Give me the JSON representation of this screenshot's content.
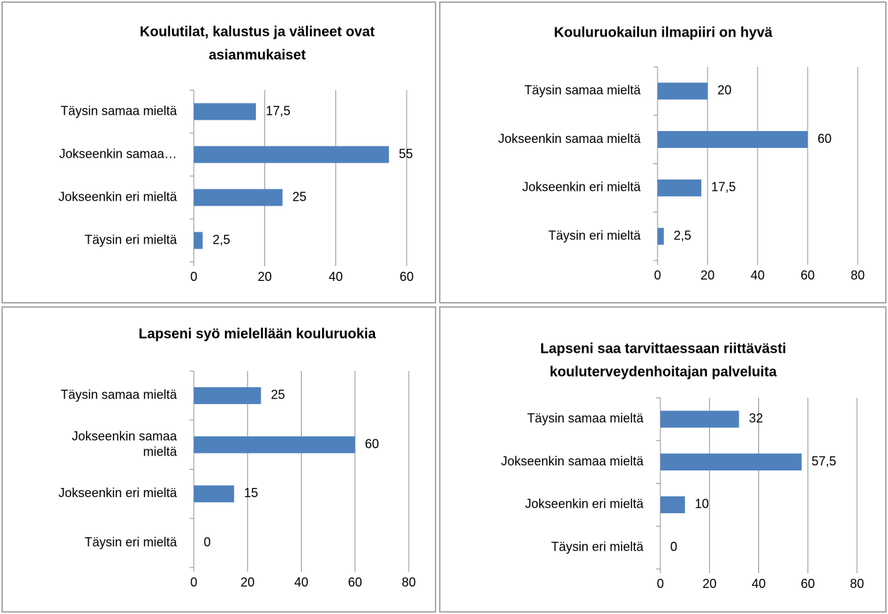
{
  "chart_data": [
    {
      "type": "bar",
      "orientation": "horizontal",
      "title": "Koulutilat, kalustus ja välineet ovat asianmukaiset",
      "categories": [
        "Täysin samaa mieltä",
        "Jokseenkin samaa…",
        "Jokseenkin eri mieltä",
        "Täysin eri mieltä"
      ],
      "values": [
        17.5,
        55,
        25,
        2.5
      ],
      "value_labels": [
        "17,5",
        "55",
        "25",
        "2,5"
      ],
      "color": "#4f81bd",
      "xlim": [
        0,
        60
      ],
      "xticks": [
        0,
        20,
        40,
        60
      ],
      "grid": true
    },
    {
      "type": "bar",
      "orientation": "horizontal",
      "title": "Kouluruokailun ilmapiiri on hyvä",
      "categories": [
        "Täysin samaa mieltä",
        "Jokseenkin samaa mieltä",
        "Jokseenkin eri mieltä",
        "Täysin eri mieltä"
      ],
      "values": [
        20,
        60,
        17.5,
        2.5
      ],
      "value_labels": [
        "20",
        "60",
        "17,5",
        "2,5"
      ],
      "color": "#4f81bd",
      "xlim": [
        0,
        80
      ],
      "xticks": [
        0,
        20,
        40,
        60,
        80
      ],
      "grid": true
    },
    {
      "type": "bar",
      "orientation": "horizontal",
      "title": "Lapseni syö mielellään kouluruokia",
      "categories": [
        "Täysin samaa mieltä",
        "Jokseenkin samaa mieltä",
        "Jokseenkin eri mieltä",
        "Täysin eri mieltä"
      ],
      "values": [
        25,
        60,
        15,
        0
      ],
      "color": "#4f81bd",
      "xlim": [
        0,
        80
      ],
      "xticks": [
        0,
        20,
        40,
        60,
        80
      ],
      "grid": true
    },
    {
      "type": "bar",
      "orientation": "horizontal",
      "title": "Lapseni saa tarvittaessaan riittävästi kouluterveydenhoitajan palveluita",
      "categories": [
        "Täysin samaa mieltä",
        "Jokseenkin samaa mieltä",
        "Jokseenkin eri mieltä",
        "Täysin eri mieltä"
      ],
      "values": [
        32,
        57.5,
        10,
        0
      ],
      "value_labels": [
        "32",
        "57,5",
        "10",
        "0"
      ],
      "color": "#4f81bd",
      "xlim": [
        0,
        80
      ],
      "xticks": [
        0,
        20,
        40,
        60,
        80
      ],
      "grid": true
    }
  ]
}
